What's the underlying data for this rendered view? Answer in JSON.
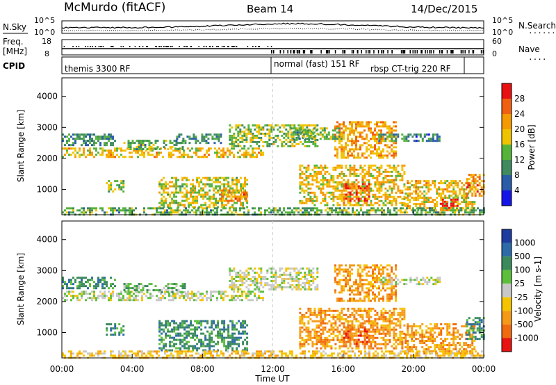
{
  "header": {
    "station": "McMurdo (fitACF)",
    "beam": "Beam 14",
    "date": "14/Dec/2015"
  },
  "noise_panel": {
    "left_label": "N.Sky",
    "left_ticks": [
      "10^5",
      "10^0"
    ],
    "right_label": "N.Search",
    "right_ticks": [
      "10^5",
      "10^0"
    ],
    "right_legend": "......."
  },
  "freq_panel": {
    "label_line1": "Freq.",
    "label_line2": "[MHz]",
    "left_ticks": [
      "18",
      "8"
    ],
    "right_label": "Nave",
    "right_ticks": [
      "60",
      "0"
    ],
    "right_legend": "...."
  },
  "cpid_panel": {
    "label": "CPID",
    "modes": [
      "themis 3300 RF",
      "normal (fast) 151 RF",
      "rbsp CT-trig 220 RF"
    ]
  },
  "colors": {
    "power_scale": [
      "#1515e8",
      "#2a5ca8",
      "#3f8a5f",
      "#56b33a",
      "#f0c300",
      "#f59a00",
      "#f06010",
      "#e81010"
    ],
    "velocity_scale": [
      "#1e3ca0",
      "#2c6aa8",
      "#3a8a5c",
      "#5cbf3c",
      "#c8c8c8",
      "#f5c400",
      "#f59a18",
      "#f06a10",
      "#e81212"
    ]
  },
  "chart_data": [
    {
      "type": "heatmap",
      "panel": "power",
      "title": "",
      "xlabel": "Time UT",
      "ylabel": "Slant Range [km]",
      "x_ticks": [
        "00:00",
        "04:00",
        "08:00",
        "12:00",
        "16:00",
        "20:00",
        "00:00"
      ],
      "xlim_hours": [
        0,
        24
      ],
      "ylim": [
        180,
        4600
      ],
      "y_ticks": [
        1000,
        2000,
        3000,
        4000
      ],
      "colorbar": {
        "label": "Power [dB]",
        "ticks": [
          "4",
          "8",
          "12",
          "16",
          "20",
          "24",
          "28"
        ],
        "range": [
          0,
          30
        ]
      },
      "regions": [
        {
          "t0": 0.0,
          "t1": 11.5,
          "r0": 2050,
          "r1": 2350,
          "level": 18
        },
        {
          "t0": 0.0,
          "t1": 3.0,
          "r0": 2450,
          "r1": 2800,
          "level": 10
        },
        {
          "t0": 3.5,
          "t1": 7.0,
          "r0": 2300,
          "r1": 2600,
          "level": 12
        },
        {
          "t0": 6.5,
          "t1": 9.0,
          "r0": 2500,
          "r1": 2800,
          "level": 10
        },
        {
          "t0": 9.5,
          "t1": 14.5,
          "r0": 2400,
          "r1": 3100,
          "level": 14
        },
        {
          "t0": 13.0,
          "t1": 16.0,
          "r0": 2600,
          "r1": 3000,
          "level": 12
        },
        {
          "t0": 15.5,
          "t1": 19.0,
          "r0": 2000,
          "r1": 3200,
          "level": 20
        },
        {
          "t0": 18.0,
          "t1": 20.0,
          "r0": 2550,
          "r1": 2800,
          "level": 10
        },
        {
          "t0": 20.0,
          "t1": 21.5,
          "r0": 2550,
          "r1": 2800,
          "level": 8
        },
        {
          "t0": 2.5,
          "t1": 3.5,
          "r0": 900,
          "r1": 1300,
          "level": 14
        },
        {
          "t0": 5.5,
          "t1": 10.5,
          "r0": 400,
          "r1": 1400,
          "level": 16
        },
        {
          "t0": 9.0,
          "t1": 10.5,
          "r0": 600,
          "r1": 1000,
          "level": 22
        },
        {
          "t0": 13.5,
          "t1": 19.5,
          "r0": 500,
          "r1": 1800,
          "level": 18
        },
        {
          "t0": 16.0,
          "t1": 17.5,
          "r0": 600,
          "r1": 1200,
          "level": 24
        },
        {
          "t0": 19.5,
          "t1": 23.5,
          "r0": 300,
          "r1": 1300,
          "level": 18
        },
        {
          "t0": 21.5,
          "t1": 22.5,
          "r0": 300,
          "r1": 700,
          "level": 26
        },
        {
          "t0": 23.0,
          "t1": 24.0,
          "r0": 800,
          "r1": 1500,
          "level": 22
        },
        {
          "t0": 0.0,
          "t1": 24.0,
          "r0": 180,
          "r1": 420,
          "level": 12
        }
      ]
    },
    {
      "type": "heatmap",
      "panel": "velocity",
      "title": "",
      "xlabel": "Time UT",
      "ylabel": "Slant Range [km]",
      "x_ticks": [
        "00:00",
        "04:00",
        "08:00",
        "12:00",
        "16:00",
        "20:00",
        "00:00"
      ],
      "xlim_hours": [
        0,
        24
      ],
      "ylim": [
        180,
        4600
      ],
      "y_ticks": [
        1000,
        2000,
        3000,
        4000
      ],
      "colorbar": {
        "label": "Velocity [m s-1]",
        "ticks": [
          "1000",
          "500",
          "100",
          "25",
          "-25",
          "-100",
          "-500",
          "-1000"
        ]
      },
      "regions": [
        {
          "t0": 0.0,
          "t1": 11.5,
          "r0": 2050,
          "r1": 2350,
          "bin": 4
        },
        {
          "t0": 0.0,
          "t1": 3.0,
          "r0": 2450,
          "r1": 2800,
          "bin": 2
        },
        {
          "t0": 3.5,
          "t1": 7.0,
          "r0": 2300,
          "r1": 2600,
          "bin": 3
        },
        {
          "t0": 9.5,
          "t1": 14.5,
          "r0": 2400,
          "r1": 3100,
          "bin": 4
        },
        {
          "t0": 15.5,
          "t1": 19.0,
          "r0": 2000,
          "r1": 3200,
          "bin": 6
        },
        {
          "t0": 18.0,
          "t1": 21.5,
          "r0": 2550,
          "r1": 2800,
          "bin": 4
        },
        {
          "t0": 2.5,
          "t1": 3.5,
          "r0": 900,
          "r1": 1300,
          "bin": 2
        },
        {
          "t0": 5.5,
          "t1": 10.5,
          "r0": 400,
          "r1": 1400,
          "bin": 2
        },
        {
          "t0": 13.5,
          "t1": 19.5,
          "r0": 500,
          "r1": 1800,
          "bin": 6
        },
        {
          "t0": 16.0,
          "t1": 17.5,
          "r0": 600,
          "r1": 1200,
          "bin": 7
        },
        {
          "t0": 19.5,
          "t1": 23.5,
          "r0": 300,
          "r1": 1300,
          "bin": 6
        },
        {
          "t0": 23.0,
          "t1": 24.0,
          "r0": 800,
          "r1": 1500,
          "bin": 2
        },
        {
          "t0": 0.0,
          "t1": 24.0,
          "r0": 180,
          "r1": 420,
          "bin": 5
        }
      ]
    }
  ]
}
